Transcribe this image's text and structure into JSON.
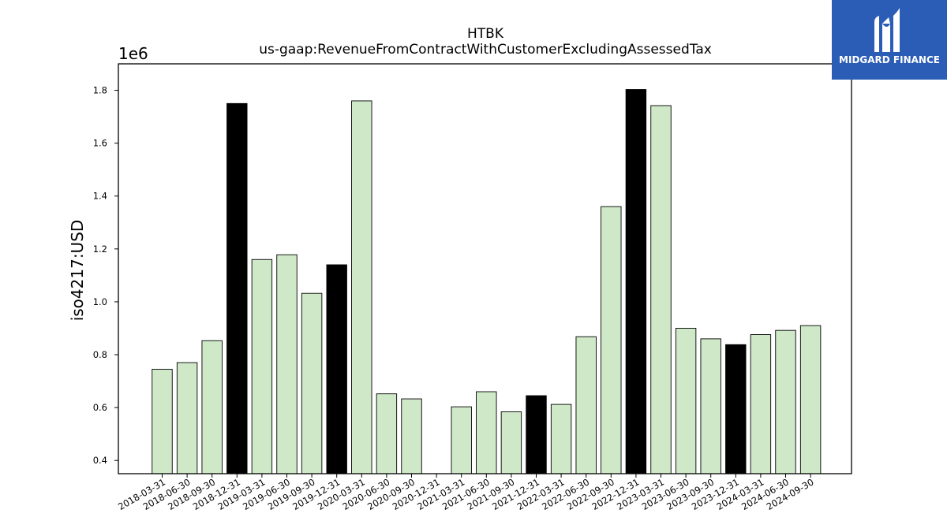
{
  "chart_data": {
    "type": "bar",
    "title": "HTBK",
    "subtitle": "us-gaap:RevenueFromContractWithCustomerExcludingAssessedTax",
    "ylabel": "iso4217:USD",
    "y_multiplier": "1e6",
    "ylim": [
      0.35,
      1.9
    ],
    "yticks": [
      "0.4",
      "0.6",
      "0.8",
      "1.0",
      "1.2",
      "1.4",
      "1.6",
      "1.8"
    ],
    "categories": [
      "2018-03-31",
      "2018-06-30",
      "2018-09-30",
      "2018-12-31",
      "2019-03-31",
      "2019-06-30",
      "2019-09-30",
      "2019-12-31",
      "2020-03-31",
      "2020-06-30",
      "2020-09-30",
      "2020-12-31",
      "2021-03-31",
      "2021-06-30",
      "2021-09-30",
      "2021-12-31",
      "2022-03-31",
      "2022-06-30",
      "2022-09-30",
      "2022-12-31",
      "2023-03-31",
      "2023-06-30",
      "2023-09-30",
      "2023-12-31",
      "2024-03-31",
      "2024-06-30",
      "2024-09-30"
    ],
    "values": [
      0.745,
      0.77,
      0.853,
      1.75,
      1.16,
      1.178,
      1.032,
      1.14,
      1.76,
      0.652,
      0.633,
      null,
      0.603,
      0.66,
      0.584,
      0.645,
      0.612,
      0.868,
      1.36,
      1.803,
      1.742,
      0.9,
      0.86,
      0.838,
      0.876,
      0.892,
      0.91
    ],
    "highlight": [
      false,
      false,
      false,
      true,
      false,
      false,
      false,
      true,
      false,
      false,
      false,
      false,
      false,
      false,
      false,
      true,
      false,
      false,
      false,
      true,
      false,
      false,
      false,
      true,
      false,
      false,
      false
    ],
    "colors": {
      "bar": "#cfe9c8",
      "highlight": "#000000",
      "edge": "#000000"
    },
    "grid": false
  },
  "logo": {
    "text": "MIDGARD FINANCE",
    "background": "#2b5db6"
  }
}
